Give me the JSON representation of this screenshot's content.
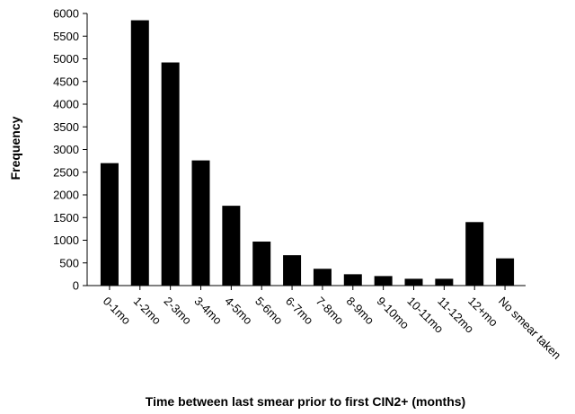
{
  "chart_data": {
    "type": "bar",
    "x_label": "Time between last smear prior to first CIN2+ (months)",
    "y_label": "Frequency",
    "categories": [
      "0-1mo",
      "1-2mo",
      "2-3mo",
      "3-4mo",
      "4-5mo",
      "5-6mo",
      "6-7mo",
      "7-8mo",
      "8-9mo",
      "9-10mo",
      "10-11mo",
      "11-12mo",
      "12+mo",
      "No smear taken"
    ],
    "values": [
      2700,
      5850,
      4920,
      2760,
      1760,
      970,
      670,
      370,
      250,
      210,
      150,
      150,
      1400,
      600
    ],
    "color": "#000000",
    "ylim": [
      0,
      6000
    ],
    "yticks": [
      0,
      500,
      1000,
      1500,
      2000,
      2500,
      3000,
      3500,
      4000,
      4500,
      5000,
      5500,
      6000
    ],
    "grid": false
  }
}
